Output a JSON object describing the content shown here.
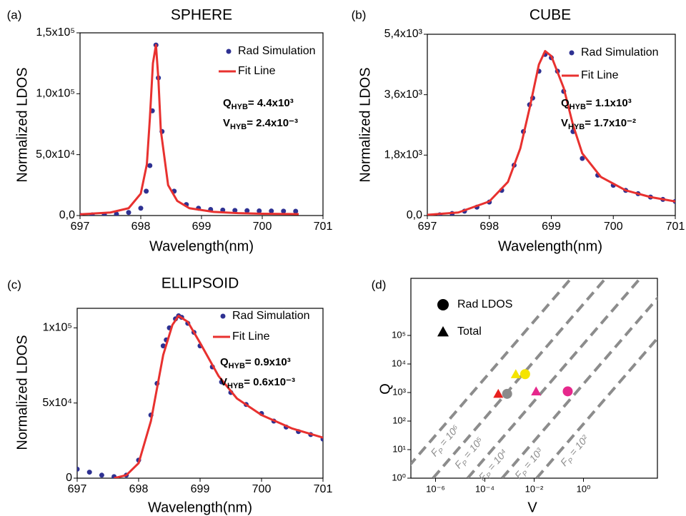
{
  "chart_data": [
    {
      "type": "scatter",
      "panel_label": "(a)",
      "title": "SPHERE",
      "x_label": "Wavelength(nm)",
      "y_label": "Normalized LDOS",
      "xlim": [
        697,
        701
      ],
      "xticks": [
        697,
        698,
        699,
        700,
        701
      ],
      "ylim": [
        0,
        150000
      ],
      "yticks": [
        {
          "value": 0,
          "label": "0,0"
        },
        {
          "value": 50000,
          "label": "5,0x10⁴"
        },
        {
          "value": 100000,
          "label": "1,0x10⁵"
        },
        {
          "value": 150000,
          "label": "1,5x10⁵"
        }
      ],
      "series": [
        {
          "name": "Rad Simulation",
          "mode": "markers",
          "color": "#2e3192",
          "x": [
            697.0,
            697.2,
            697.4,
            697.6,
            697.8,
            698.0,
            698.09,
            698.15,
            698.19,
            698.25,
            698.29,
            698.35,
            698.55,
            698.75,
            698.95,
            699.15,
            699.35,
            699.55,
            699.75,
            699.95,
            700.15,
            700.35,
            700.55
          ],
          "values": [
            300,
            500,
            800,
            1200,
            2500,
            6000,
            20000,
            41000,
            86000,
            140000,
            113000,
            69000,
            20000,
            9000,
            6000,
            5000,
            4500,
            4200,
            4000,
            3800,
            3700,
            3600,
            3500
          ]
        },
        {
          "name": "Fit Line",
          "mode": "lines",
          "color": "#e8312f",
          "x": [
            697.0,
            697.5,
            697.8,
            698.0,
            698.1,
            698.15,
            698.2,
            698.25,
            698.29,
            698.33,
            698.45,
            698.6,
            698.8,
            699.2,
            699.6,
            700.0,
            700.6
          ],
          "values": [
            1000,
            2500,
            6000,
            18000,
            42000,
            80000,
            125000,
            140000,
            112000,
            70000,
            25000,
            12000,
            6000,
            3000,
            2000,
            1500,
            1200
          ]
        }
      ],
      "annotations": [
        {
          "main": "Q",
          "sub": "HYB",
          "rest": "= 4.4x10³"
        },
        {
          "main": "V",
          "sub": "HYB",
          "rest": "= 2.4x10⁻³"
        }
      ]
    },
    {
      "type": "scatter",
      "panel_label": "(b)",
      "title": "CUBE",
      "x_label": "Wavelength(nm)",
      "y_label": "Normalized LDOS",
      "xlim": [
        697,
        701
      ],
      "xticks": [
        697,
        698,
        699,
        700,
        701
      ],
      "ylim": [
        0,
        5400
      ],
      "yticks": [
        {
          "value": 0,
          "label": "0,0"
        },
        {
          "value": 1800,
          "label": "1,8x10³"
        },
        {
          "value": 3600,
          "label": "3,6x10³"
        },
        {
          "value": 5400,
          "label": "5,4x10³"
        }
      ],
      "series": [
        {
          "name": "Rad Simulation",
          "mode": "markers",
          "color": "#2e3192",
          "x": [
            697.2,
            697.4,
            697.6,
            697.8,
            698.0,
            698.2,
            698.4,
            698.55,
            698.65,
            698.7,
            698.8,
            698.9,
            699.0,
            699.1,
            699.2,
            699.35,
            699.5,
            699.75,
            700.0,
            700.2,
            700.4,
            700.6,
            700.8,
            701.0
          ],
          "values": [
            20,
            60,
            130,
            250,
            400,
            750,
            1500,
            2500,
            3300,
            3500,
            4300,
            4800,
            4700,
            4300,
            3700,
            2500,
            1700,
            1200,
            900,
            750,
            650,
            550,
            480,
            420
          ]
        },
        {
          "name": "Fit Line",
          "mode": "lines",
          "color": "#e8312f",
          "x": [
            697.0,
            697.5,
            698.0,
            698.3,
            698.5,
            698.65,
            698.8,
            698.9,
            699.0,
            699.2,
            699.35,
            699.5,
            699.8,
            700.2,
            700.6,
            701.0
          ],
          "values": [
            20,
            90,
            420,
            1000,
            2000,
            3200,
            4500,
            4900,
            4750,
            3800,
            2700,
            1850,
            1150,
            750,
            550,
            420
          ]
        }
      ],
      "annotations": [
        {
          "main": "Q",
          "sub": "HYB",
          "rest": "= 1.1x10³"
        },
        {
          "main": "V",
          "sub": "HYB",
          "rest": "= 1.7x10⁻²"
        }
      ]
    },
    {
      "type": "scatter",
      "panel_label": "(c)",
      "title": "ELLIPSOID",
      "x_label": "Wavelength(nm)",
      "y_label": "Normalized LDOS",
      "xlim": [
        697,
        701
      ],
      "xticks": [
        697,
        698,
        699,
        700,
        701
      ],
      "ylim": [
        0,
        113000
      ],
      "yticks": [
        0,
        {
          "value": 50000,
          "label": "5x10⁴"
        },
        {
          "value": 100000,
          "label": "1x10⁵"
        }
      ],
      "series": [
        {
          "name": "Rad Simulation",
          "mode": "markers",
          "color": "#2e3192",
          "x": [
            697.0,
            697.2,
            697.4,
            697.6,
            697.8,
            698.0,
            698.2,
            698.3,
            698.4,
            698.45,
            698.5,
            698.6,
            698.65,
            698.7,
            698.8,
            698.9,
            699.0,
            699.2,
            699.35,
            699.5,
            699.75,
            700.0,
            700.2,
            700.4,
            700.6,
            700.8,
            701.0
          ],
          "values": [
            6000,
            4000,
            2000,
            1000,
            2000,
            12000,
            42000,
            63000,
            88000,
            92000,
            100000,
            106000,
            108000,
            107000,
            103000,
            97000,
            88000,
            74000,
            64000,
            57000,
            49000,
            43000,
            38000,
            34000,
            31000,
            29000,
            26000
          ]
        },
        {
          "name": "Fit Line",
          "mode": "lines",
          "color": "#e8312f",
          "x": [
            697.6,
            697.8,
            698.0,
            698.2,
            698.4,
            698.55,
            698.65,
            698.8,
            699.0,
            699.3,
            699.6,
            700.0,
            700.5,
            701.0
          ],
          "values": [
            0,
            2000,
            10000,
            38000,
            82000,
            102000,
            108000,
            104000,
            90000,
            68000,
            53000,
            42000,
            33000,
            27000
          ]
        }
      ],
      "annotations": [
        {
          "main": "Q",
          "sub": "HYB",
          "rest": "= 0.9x10³"
        },
        {
          "main": "V",
          "sub": "HYB",
          "rest": "= 0.6x10⁻³"
        }
      ]
    },
    {
      "type": "scatter",
      "panel_label": "(d)",
      "x_label": "V",
      "y_label": "Q",
      "xscale": "log",
      "yscale": "log",
      "legend_color": "#000000",
      "xlim": [
        1e-07,
        1000
      ],
      "xticks": [
        {
          "value": 1e-06,
          "label": "10⁻⁶"
        },
        {
          "value": 0.0001,
          "label": "10⁻⁴"
        },
        {
          "value": 0.01,
          "label": "10⁻²"
        },
        {
          "value": 1,
          "label": "10⁰"
        }
      ],
      "ylim": [
        1,
        10000000
      ],
      "yticks": [
        {
          "value": 1,
          "label": "10⁰"
        },
        {
          "value": 10,
          "label": "10¹"
        },
        {
          "value": 100,
          "label": "10²"
        },
        {
          "value": 1000,
          "label": "10³"
        },
        {
          "value": 10000,
          "label": "10⁴"
        },
        {
          "value": 100000,
          "label": "10⁵"
        }
      ],
      "series": [
        {
          "name": "Rad LDOS",
          "mode": "markers",
          "marker": "circle",
          "colors": [
            "#8a8a8a",
            "#f5e400",
            "#e6288c"
          ],
          "x": [
            0.0008,
            0.0043,
            0.23
          ],
          "values": [
            900,
            4400,
            1100
          ]
        },
        {
          "name": "Total",
          "mode": "markers",
          "marker": "triangle",
          "colors": [
            "#e8201e",
            "#f5e400",
            "#e6288c"
          ],
          "x": [
            0.00035,
            0.0018,
            0.012
          ],
          "values": [
            900,
            4400,
            1100
          ]
        }
      ],
      "reference_lines": [
        {
          "label": {
            "main": "F",
            "sub": "P",
            "rest": " = 10⁶"
          },
          "x": [
            3.16e-08,
            0.316
          ],
          "values": [
            1,
            10000000
          ]
        },
        {
          "label": {
            "main": "F",
            "sub": "P",
            "rest": " = 10⁵"
          },
          "x": [
            7.9e-07,
            7.9
          ],
          "values": [
            1,
            10000000
          ]
        },
        {
          "label": {
            "main": "F",
            "sub": "P",
            "rest": " = 10⁴"
          },
          "x": [
            2e-05,
            200
          ],
          "values": [
            1,
            10000000
          ]
        },
        {
          "label": {
            "main": "F",
            "sub": "P",
            "rest": " = 10³"
          },
          "x": [
            0.0005,
            5000
          ],
          "values": [
            1,
            10000000
          ]
        },
        {
          "label": {
            "main": "F",
            "sub": "P",
            "rest": " = 10²"
          },
          "x": [
            0.0126,
            126000
          ],
          "values": [
            1,
            10000000
          ]
        }
      ],
      "reference_color": "#8c8c8c"
    }
  ]
}
